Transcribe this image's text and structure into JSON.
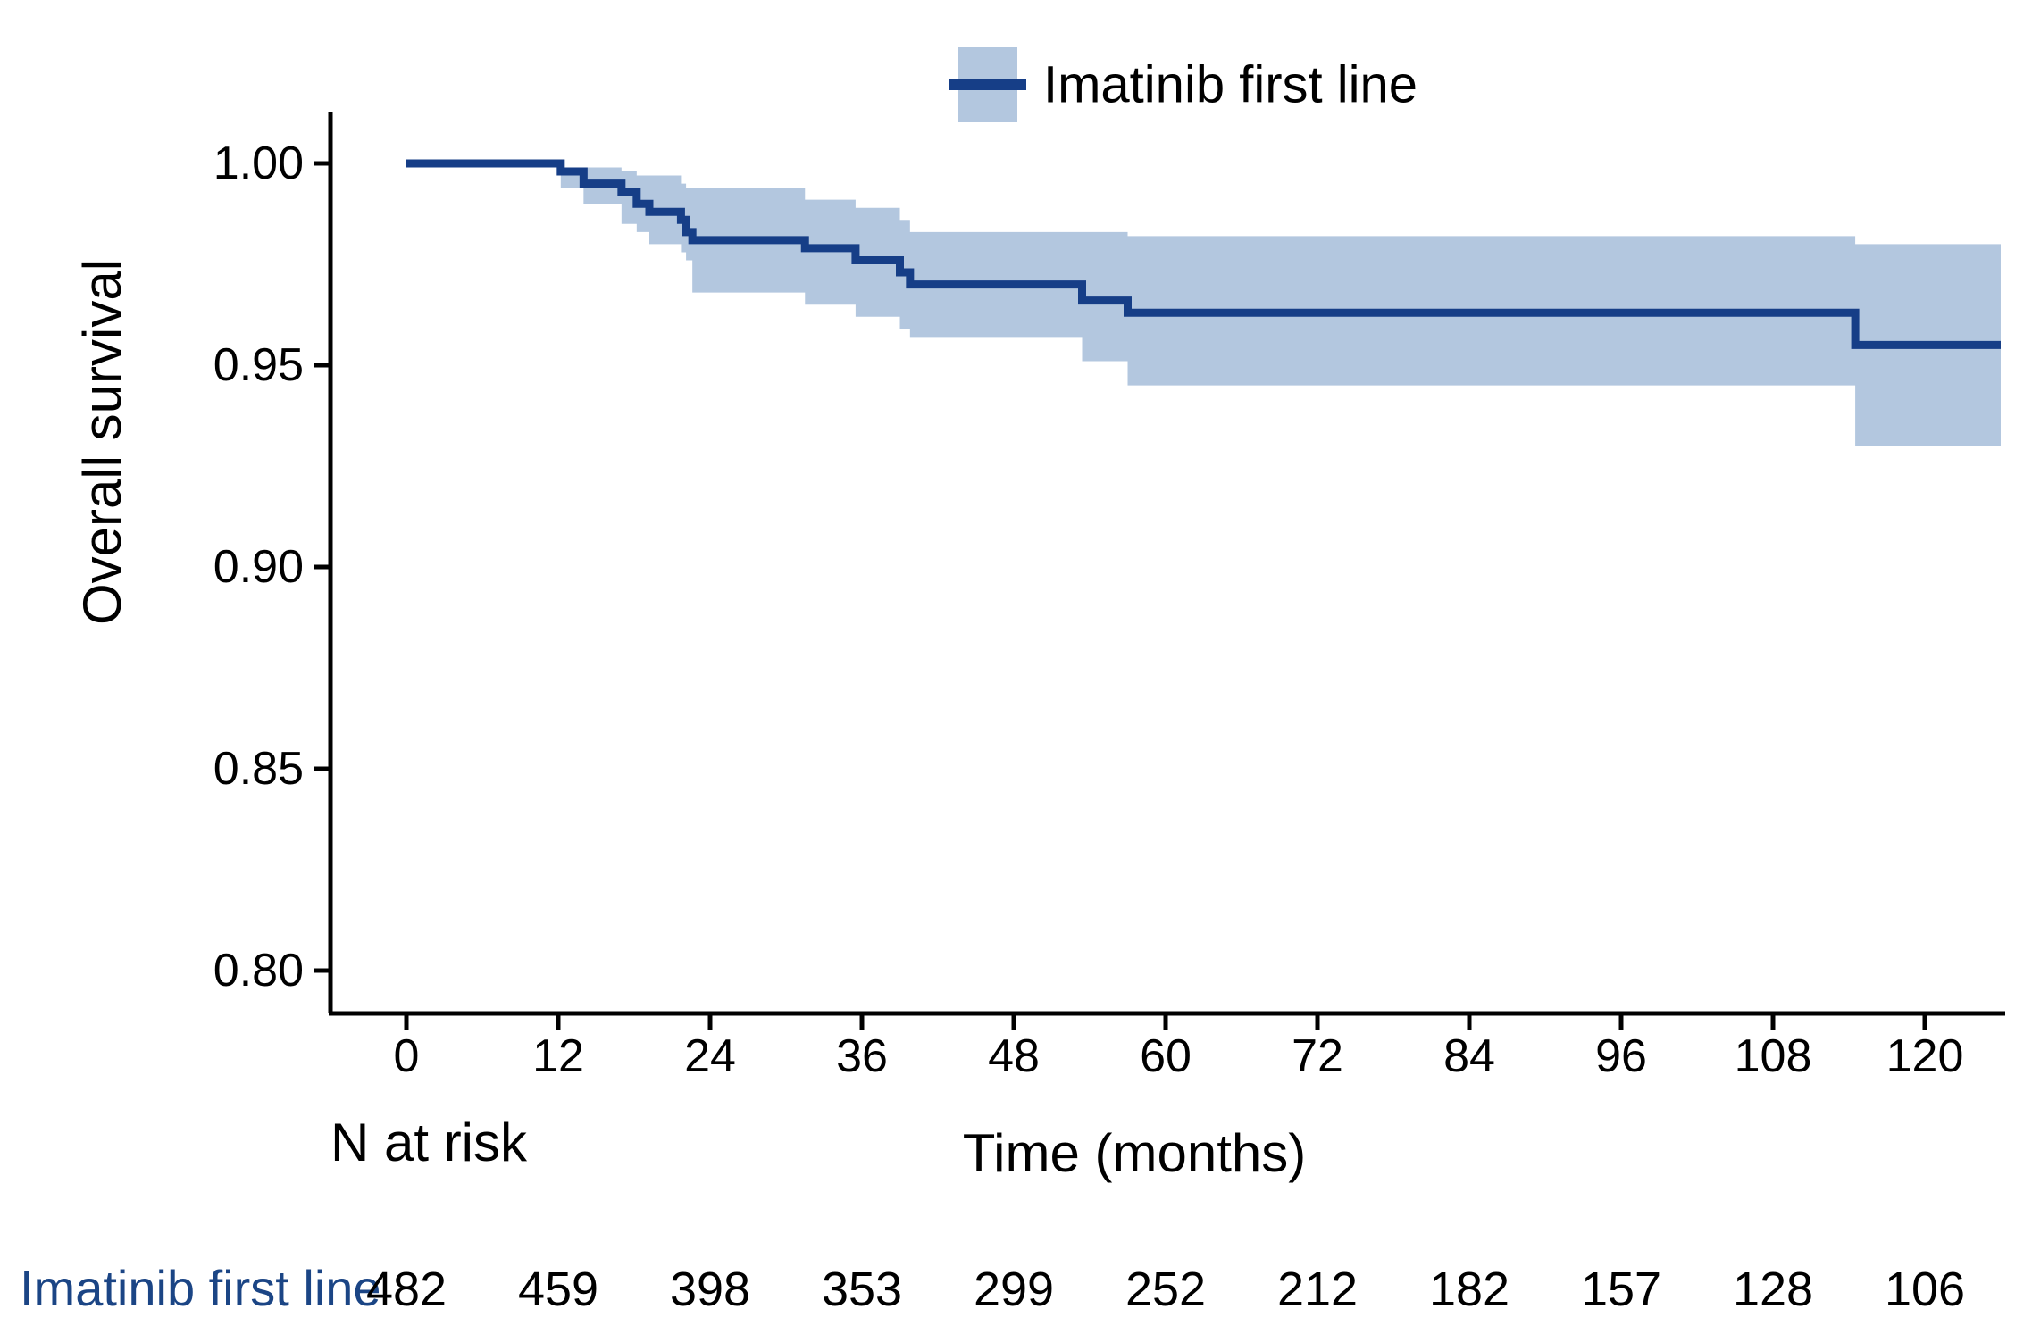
{
  "legend": {
    "label": "Imatinib first line"
  },
  "axes": {
    "x_label": "Time (months)",
    "y_label": "Overall survival"
  },
  "risk_table": {
    "header": "N at risk"
  },
  "colors": {
    "line_navy": "#163e87",
    "ci_band": "#b3c7df",
    "risk_label_navy": "#1b4585",
    "axis_black": "#000000"
  },
  "chart_data": {
    "type": "line",
    "subtype": "kaplan-meier-step",
    "title": "",
    "xlabel": "Time (months)",
    "ylabel": "Overall survival",
    "xlim": [
      0,
      126
    ],
    "ylim": [
      0.8,
      1.0
    ],
    "grid": false,
    "legend_position": "top-center",
    "x_ticks": [
      0,
      12,
      24,
      36,
      48,
      60,
      72,
      84,
      96,
      108,
      120
    ],
    "y_ticks": [
      1.0,
      0.95,
      0.9,
      0.85,
      0.8
    ],
    "end_time": 126,
    "series": [
      {
        "name": "Imatinib first line",
        "steps": [
          {
            "t": 0,
            "s": 1.0,
            "hi": null,
            "lo": null
          },
          {
            "t": 12.2,
            "s": 0.998,
            "hi": 0.999,
            "lo": 0.994
          },
          {
            "t": 14.0,
            "s": 0.995,
            "hi": 0.999,
            "lo": 0.99
          },
          {
            "t": 17.0,
            "s": 0.993,
            "hi": 0.998,
            "lo": 0.985
          },
          {
            "t": 18.2,
            "s": 0.99,
            "hi": 0.997,
            "lo": 0.983
          },
          {
            "t": 19.2,
            "s": 0.988,
            "hi": 0.997,
            "lo": 0.98
          },
          {
            "t": 21.7,
            "s": 0.986,
            "hi": 0.995,
            "lo": 0.978
          },
          {
            "t": 22.1,
            "s": 0.983,
            "hi": 0.994,
            "lo": 0.976
          },
          {
            "t": 22.6,
            "s": 0.981,
            "hi": 0.994,
            "lo": 0.968
          },
          {
            "t": 31.5,
            "s": 0.979,
            "hi": 0.991,
            "lo": 0.965
          },
          {
            "t": 35.5,
            "s": 0.976,
            "hi": 0.989,
            "lo": 0.962
          },
          {
            "t": 39.0,
            "s": 0.973,
            "hi": 0.986,
            "lo": 0.959
          },
          {
            "t": 39.8,
            "s": 0.97,
            "hi": 0.983,
            "lo": 0.957
          },
          {
            "t": 53.4,
            "s": 0.966,
            "hi": 0.983,
            "lo": 0.951
          },
          {
            "t": 57.0,
            "s": 0.963,
            "hi": 0.982,
            "lo": 0.945
          },
          {
            "t": 114.5,
            "s": 0.955,
            "hi": 0.98,
            "lo": 0.93
          }
        ]
      }
    ],
    "n_at_risk": {
      "label": "Imatinib first line",
      "times": [
        0,
        12,
        24,
        36,
        48,
        60,
        72,
        84,
        96,
        108,
        120
      ],
      "counts": [
        482,
        459,
        398,
        353,
        299,
        252,
        212,
        182,
        157,
        128,
        106
      ]
    }
  }
}
